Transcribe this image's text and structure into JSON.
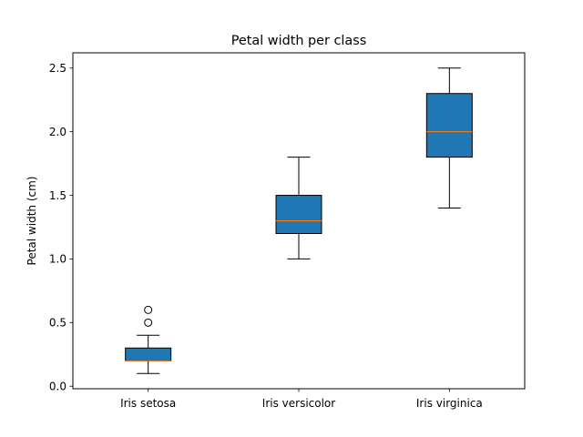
{
  "chart_data": {
    "type": "box",
    "title": "Petal width per class",
    "xlabel": "",
    "ylabel": "Petal width (cm)",
    "ylim": [
      -0.02,
      2.62
    ],
    "yticks": [
      "0.0",
      "0.5",
      "1.0",
      "1.5",
      "2.0",
      "2.5"
    ],
    "categories": [
      "Iris setosa",
      "Iris versicolor",
      "Iris virginica"
    ],
    "boxes": [
      {
        "whisker_low": 0.1,
        "q1": 0.2,
        "median": 0.2,
        "q3": 0.3,
        "whisker_high": 0.4,
        "outliers": [
          0.5,
          0.6
        ]
      },
      {
        "whisker_low": 1.0,
        "q1": 1.2,
        "median": 1.3,
        "q3": 1.5,
        "whisker_high": 1.8,
        "outliers": []
      },
      {
        "whisker_low": 1.4,
        "q1": 1.8,
        "median": 2.0,
        "q3": 2.3,
        "whisker_high": 2.5,
        "outliers": []
      }
    ],
    "grid": false,
    "colors": {
      "box_fill": "#1f77b4",
      "median": "#ff7f0e",
      "line": "#000000"
    }
  }
}
